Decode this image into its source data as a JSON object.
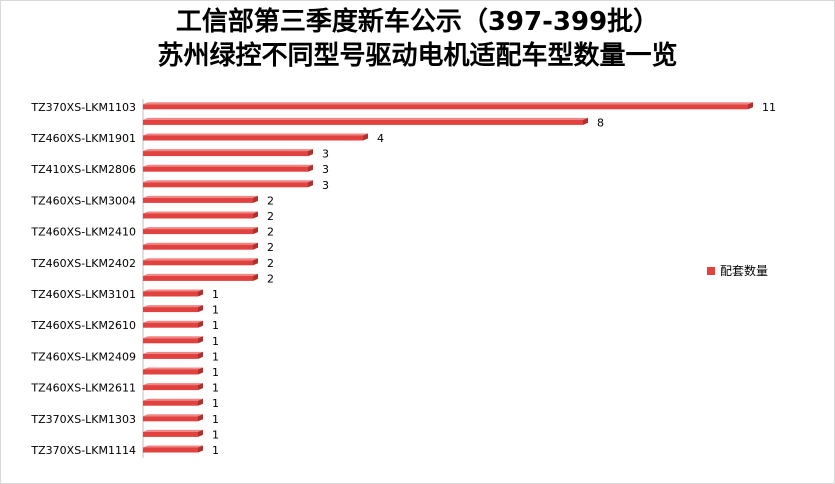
{
  "chart_data": {
    "type": "bar",
    "orientation": "horizontal",
    "title_line1": "工信部第三季度新车公示（397-399批）",
    "title_line2": "苏州绿控不同型号驱动电机适配车型数量一览",
    "categories": [
      "TZ370XS-LKM1103",
      "",
      "TZ460XS-LKM1901",
      "",
      "TZ410XS-LKM2806",
      "",
      "TZ460XS-LKM3004",
      "",
      "TZ460XS-LKM2410",
      "",
      "TZ460XS-LKM2402",
      "",
      "TZ460XS-LKM3101",
      "",
      "TZ460XS-LKM2610",
      "",
      "TZ460XS-LKM2409",
      "",
      "TZ460XS-LKM2611",
      "",
      "TZ370XS-LKM1303",
      "",
      "TZ370XS-LKM1114"
    ],
    "series": [
      {
        "name": "配套数量",
        "values": [
          11,
          8,
          4,
          3,
          3,
          3,
          2,
          2,
          2,
          2,
          2,
          2,
          1,
          1,
          1,
          1,
          1,
          1,
          1,
          1,
          1,
          1,
          1
        ]
      }
    ],
    "xlim": [
      0,
      11
    ],
    "legend_position": "right",
    "color": "#e1413f",
    "color_side": "#b0302e",
    "color_top": "#f08583"
  }
}
